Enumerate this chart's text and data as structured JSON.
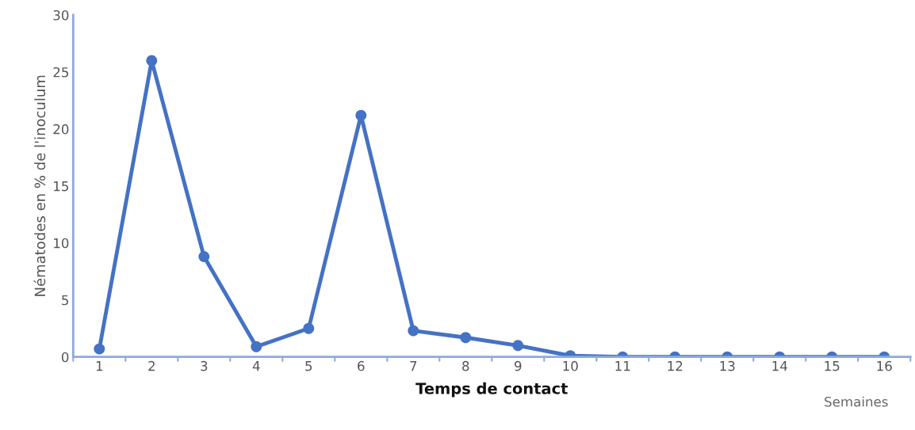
{
  "chart_data": {
    "type": "line",
    "xlabel": "Temps de contact",
    "ylabel": "Nématodes en % de l'inoculum",
    "categories": [
      "1",
      "2",
      "3",
      "4",
      "5",
      "6",
      "7",
      "8",
      "9",
      "10",
      "11",
      "12",
      "13",
      "14",
      "15",
      "16"
    ],
    "series": [
      {
        "color": "#4472c4",
        "values": [
          0.7,
          26.0,
          8.8,
          0.9,
          2.5,
          21.2,
          2.3,
          1.7,
          1.0,
          0.1,
          0,
          0,
          0,
          0,
          0,
          0
        ]
      }
    ],
    "ylim": [
      0,
      30
    ],
    "yticks": [
      0,
      5,
      10,
      15,
      20,
      25,
      30
    ],
    "marker": "circle",
    "line_style": "solid",
    "grid": false,
    "legend": false,
    "annotations": [
      "Semaines"
    ]
  }
}
